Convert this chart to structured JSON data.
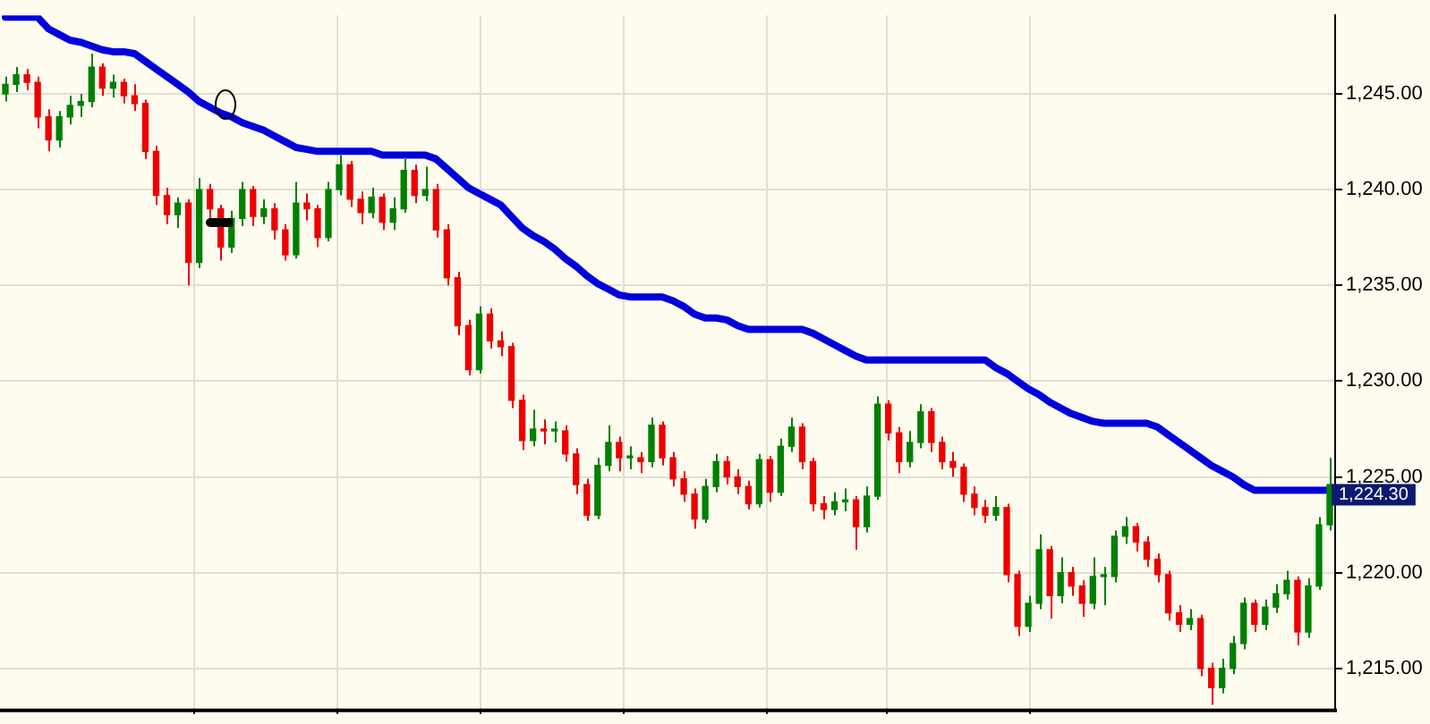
{
  "chart_data": {
    "type": "candlestick",
    "categories": [
      null,
      null,
      null,
      null,
      null,
      null,
      null,
      null,
      null,
      null,
      null,
      null,
      null,
      null,
      null,
      null,
      null,
      null,
      null,
      null,
      null,
      null,
      null,
      null,
      null,
      null,
      null,
      null,
      null,
      null,
      null,
      null,
      null,
      null,
      null,
      null,
      null,
      null,
      null,
      null,
      null,
      null,
      null,
      null,
      null,
      null,
      null,
      null,
      null,
      null,
      null,
      null,
      null,
      null,
      null,
      null,
      null,
      null,
      null,
      null,
      null,
      null,
      null,
      null,
      null,
      null,
      null,
      null,
      null,
      null,
      null,
      null,
      null,
      null,
      null,
      null,
      null,
      null,
      null,
      null,
      null,
      null,
      null,
      null,
      null,
      null,
      null,
      null,
      null,
      null,
      null,
      null,
      null,
      null,
      null,
      null,
      null,
      null,
      null,
      null,
      null,
      null,
      null,
      null,
      null,
      null,
      null,
      null,
      null,
      null,
      null,
      null,
      null,
      null,
      null,
      null,
      null,
      null,
      null,
      null,
      null,
      null,
      null,
      null
    ],
    "ohlc": [
      [
        1245.0,
        1245.9,
        1244.6,
        1245.5
      ],
      [
        1245.5,
        1246.4,
        1245.1,
        1246.0
      ],
      [
        1246.0,
        1246.3,
        1245.2,
        1245.6
      ],
      [
        1245.6,
        1245.9,
        1243.2,
        1243.8
      ],
      [
        1243.8,
        1244.2,
        1242.0,
        1242.6
      ],
      [
        1242.6,
        1244.1,
        1242.2,
        1243.8
      ],
      [
        1243.8,
        1244.9,
        1243.4,
        1244.4
      ],
      [
        1244.4,
        1245.0,
        1243.8,
        1244.6
      ],
      [
        1244.6,
        1247.1,
        1244.3,
        1246.4
      ],
      [
        1246.4,
        1246.6,
        1244.9,
        1245.3
      ],
      [
        1245.3,
        1246.0,
        1244.8,
        1245.6
      ],
      [
        1245.6,
        1245.8,
        1244.5,
        1244.9
      ],
      [
        1244.9,
        1245.5,
        1244.1,
        1244.5
      ],
      [
        1244.5,
        1244.7,
        1241.6,
        1242.0
      ],
      [
        1242.0,
        1242.3,
        1239.2,
        1239.7
      ],
      [
        1239.7,
        1240.1,
        1238.2,
        1238.7
      ],
      [
        1238.7,
        1239.6,
        1238.0,
        1239.3
      ],
      [
        1239.3,
        1239.5,
        1235.0,
        1236.2
      ],
      [
        1236.2,
        1240.6,
        1235.9,
        1240.0
      ],
      [
        1240.0,
        1240.3,
        1238.5,
        1239.0
      ],
      [
        1239.0,
        1239.2,
        1236.3,
        1237.0
      ],
      [
        1237.0,
        1238.9,
        1236.7,
        1238.5
      ],
      [
        1238.5,
        1240.4,
        1238.1,
        1240.0
      ],
      [
        1240.0,
        1240.2,
        1238.1,
        1238.6
      ],
      [
        1238.6,
        1239.5,
        1238.2,
        1239.0
      ],
      [
        1239.0,
        1239.3,
        1237.4,
        1237.9
      ],
      [
        1237.9,
        1238.2,
        1236.3,
        1236.6
      ],
      [
        1236.6,
        1240.4,
        1236.4,
        1239.3
      ],
      [
        1239.3,
        1239.8,
        1238.4,
        1239.0
      ],
      [
        1239.0,
        1239.2,
        1237.0,
        1237.5
      ],
      [
        1237.5,
        1240.4,
        1237.3,
        1240.0
      ],
      [
        1240.0,
        1241.8,
        1239.7,
        1241.3
      ],
      [
        1241.3,
        1241.5,
        1239.1,
        1239.5
      ],
      [
        1239.5,
        1239.9,
        1238.2,
        1238.8
      ],
      [
        1238.8,
        1240.1,
        1238.5,
        1239.6
      ],
      [
        1239.6,
        1239.8,
        1237.9,
        1238.3
      ],
      [
        1238.3,
        1239.6,
        1237.9,
        1239.0
      ],
      [
        1239.0,
        1241.6,
        1238.8,
        1241.0
      ],
      [
        1241.0,
        1241.3,
        1239.3,
        1239.7
      ],
      [
        1239.7,
        1241.2,
        1239.4,
        1240.0
      ],
      [
        1240.0,
        1240.3,
        1237.5,
        1237.9
      ],
      [
        1237.9,
        1238.2,
        1235.0,
        1235.4
      ],
      [
        1235.4,
        1235.7,
        1232.4,
        1232.9
      ],
      [
        1232.9,
        1233.2,
        1230.3,
        1230.6
      ],
      [
        1230.6,
        1233.9,
        1230.4,
        1233.5
      ],
      [
        1233.5,
        1233.8,
        1231.7,
        1232.1
      ],
      [
        1232.1,
        1232.6,
        1231.3,
        1231.8
      ],
      [
        1231.8,
        1232.0,
        1228.6,
        1229.0
      ],
      [
        1229.0,
        1229.3,
        1226.4,
        1226.9
      ],
      [
        1226.9,
        1228.5,
        1226.6,
        1227.5
      ],
      [
        1227.5,
        1228.0,
        1226.7,
        1227.4
      ],
      [
        1227.4,
        1227.9,
        1226.8,
        1227.4
      ],
      [
        1227.4,
        1227.7,
        1225.8,
        1226.2
      ],
      [
        1226.2,
        1226.5,
        1224.1,
        1224.6
      ],
      [
        1224.6,
        1224.9,
        1222.7,
        1223.0
      ],
      [
        1223.0,
        1226.0,
        1222.8,
        1225.6
      ],
      [
        1225.6,
        1227.7,
        1225.3,
        1226.8
      ],
      [
        1226.8,
        1227.1,
        1225.3,
        1226.0
      ],
      [
        1226.0,
        1226.6,
        1225.4,
        1226.0
      ],
      [
        1226.0,
        1226.3,
        1225.2,
        1225.8
      ],
      [
        1225.8,
        1228.1,
        1225.5,
        1227.7
      ],
      [
        1227.7,
        1227.9,
        1225.6,
        1226.0
      ],
      [
        1226.0,
        1226.3,
        1224.5,
        1224.9
      ],
      [
        1224.9,
        1225.3,
        1223.7,
        1224.1
      ],
      [
        1224.1,
        1224.4,
        1222.3,
        1222.8
      ],
      [
        1222.8,
        1224.9,
        1222.6,
        1224.5
      ],
      [
        1224.5,
        1226.2,
        1224.2,
        1225.8
      ],
      [
        1225.8,
        1226.1,
        1224.6,
        1225.0
      ],
      [
        1225.0,
        1225.4,
        1224.1,
        1224.5
      ],
      [
        1224.5,
        1224.8,
        1223.3,
        1223.6
      ],
      [
        1223.6,
        1226.2,
        1223.4,
        1225.9
      ],
      [
        1225.9,
        1226.1,
        1223.7,
        1224.2
      ],
      [
        1224.2,
        1227.0,
        1224.0,
        1226.6
      ],
      [
        1226.6,
        1228.1,
        1226.3,
        1227.6
      ],
      [
        1227.6,
        1227.8,
        1225.4,
        1225.8
      ],
      [
        1225.8,
        1226.0,
        1223.2,
        1223.6
      ],
      [
        1223.6,
        1224.0,
        1222.8,
        1223.3
      ],
      [
        1223.3,
        1224.2,
        1223.0,
        1223.7
      ],
      [
        1223.7,
        1224.4,
        1223.2,
        1223.8
      ],
      [
        1223.8,
        1224.0,
        1221.2,
        1222.4
      ],
      [
        1222.4,
        1224.5,
        1222.1,
        1224.0
      ],
      [
        1224.0,
        1229.2,
        1223.8,
        1228.8
      ],
      [
        1228.8,
        1229.0,
        1226.9,
        1227.3
      ],
      [
        1227.3,
        1227.6,
        1225.2,
        1225.8
      ],
      [
        1225.8,
        1227.4,
        1225.5,
        1226.8
      ],
      [
        1226.8,
        1228.8,
        1226.5,
        1228.4
      ],
      [
        1228.4,
        1228.6,
        1226.3,
        1226.8
      ],
      [
        1226.8,
        1227.1,
        1225.4,
        1225.8
      ],
      [
        1225.8,
        1226.3,
        1225.0,
        1225.5
      ],
      [
        1225.5,
        1225.7,
        1223.7,
        1224.1
      ],
      [
        1224.1,
        1224.5,
        1223.0,
        1223.4
      ],
      [
        1223.4,
        1223.8,
        1222.6,
        1223.0
      ],
      [
        1223.0,
        1224.0,
        1222.7,
        1223.4
      ],
      [
        1223.4,
        1223.6,
        1219.5,
        1219.9
      ],
      [
        1219.9,
        1220.1,
        1216.7,
        1217.2
      ],
      [
        1217.2,
        1218.8,
        1216.9,
        1218.4
      ],
      [
        1218.4,
        1222.0,
        1218.1,
        1221.2
      ],
      [
        1221.2,
        1221.4,
        1217.6,
        1218.8
      ],
      [
        1218.8,
        1220.8,
        1218.4,
        1220.0
      ],
      [
        1220.0,
        1220.3,
        1218.8,
        1219.3
      ],
      [
        1219.3,
        1219.6,
        1217.7,
        1218.4
      ],
      [
        1218.4,
        1220.8,
        1218.1,
        1219.8
      ],
      [
        1219.8,
        1220.3,
        1218.3,
        1219.8
      ],
      [
        1219.8,
        1222.2,
        1219.5,
        1221.9
      ],
      [
        1221.9,
        1222.9,
        1221.5,
        1222.4
      ],
      [
        1222.4,
        1222.6,
        1221.1,
        1221.6
      ],
      [
        1221.6,
        1221.9,
        1220.3,
        1220.7
      ],
      [
        1220.7,
        1221.0,
        1219.5,
        1219.9
      ],
      [
        1219.9,
        1220.1,
        1217.5,
        1217.9
      ],
      [
        1217.9,
        1218.3,
        1216.9,
        1217.3
      ],
      [
        1217.3,
        1218.1,
        1217.0,
        1217.6
      ],
      [
        1217.6,
        1217.8,
        1214.6,
        1215.0
      ],
      [
        1215.0,
        1215.3,
        1213.1,
        1214.0
      ],
      [
        1214.0,
        1215.5,
        1213.7,
        1215.0
      ],
      [
        1215.0,
        1216.7,
        1214.7,
        1216.3
      ],
      [
        1216.3,
        1218.7,
        1216.0,
        1218.4
      ],
      [
        1218.4,
        1218.6,
        1216.9,
        1217.3
      ],
      [
        1217.3,
        1218.6,
        1217.0,
        1218.2
      ],
      [
        1218.2,
        1219.4,
        1217.9,
        1218.9
      ],
      [
        1218.9,
        1220.1,
        1218.6,
        1219.6
      ],
      [
        1219.6,
        1219.8,
        1216.2,
        1216.9
      ],
      [
        1216.9,
        1219.7,
        1216.6,
        1219.3
      ],
      [
        1219.3,
        1222.9,
        1219.1,
        1222.5
      ],
      [
        1222.5,
        1226.0,
        1222.2,
        1224.6
      ]
    ],
    "colors": [
      "#008000",
      "#008000",
      "#ee0000",
      "#ee0000",
      "#ee0000",
      "#008000",
      "#008000",
      "#008000",
      "#008000",
      "#ee0000",
      "#008000",
      "#ee0000",
      "#ee0000",
      "#ee0000",
      "#ee0000",
      "#ee0000",
      "#008000",
      "#ee0000",
      "#008000",
      "#ee0000",
      "#ee0000",
      "#008000",
      "#008000",
      "#ee0000",
      "#008000",
      "#ee0000",
      "#ee0000",
      "#008000",
      "#ee0000",
      "#ee0000",
      "#008000",
      "#008000",
      "#ee0000",
      "#ee0000",
      "#008000",
      "#ee0000",
      "#008000",
      "#008000",
      "#ee0000",
      "#008000",
      "#ee0000",
      "#ee0000",
      "#ee0000",
      "#ee0000",
      "#008000",
      "#ee0000",
      "#ee0000",
      "#ee0000",
      "#ee0000",
      "#008000",
      "#ee0000",
      "#008000",
      "#ee0000",
      "#ee0000",
      "#ee0000",
      "#008000",
      "#008000",
      "#ee0000",
      "#008000",
      "#ee0000",
      "#008000",
      "#ee0000",
      "#ee0000",
      "#ee0000",
      "#ee0000",
      "#008000",
      "#008000",
      "#ee0000",
      "#ee0000",
      "#ee0000",
      "#008000",
      "#ee0000",
      "#008000",
      "#008000",
      "#ee0000",
      "#ee0000",
      "#ee0000",
      "#008000",
      "#008000",
      "#ee0000",
      "#008000",
      "#008000",
      "#ee0000",
      "#ee0000",
      "#008000",
      "#008000",
      "#ee0000",
      "#ee0000",
      "#ee0000",
      "#ee0000",
      "#ee0000",
      "#ee0000",
      "#008000",
      "#ee0000",
      "#ee0000",
      "#008000",
      "#008000",
      "#ee0000",
      "#008000",
      "#ee0000",
      "#ee0000",
      "#008000",
      "#008000",
      "#008000",
      "#008000",
      "#ee0000",
      "#ee0000",
      "#ee0000",
      "#ee0000",
      "#ee0000",
      "#008000",
      "#ee0000",
      "#ee0000",
      "#008000",
      "#008000",
      "#008000",
      "#ee0000",
      "#008000",
      "#008000",
      "#008000",
      "#ee0000",
      "#008000",
      "#008000",
      "#008000"
    ],
    "series": [
      {
        "type": "line",
        "color": "#0000dd",
        "values": [
          1249.0,
          1249.0,
          1249.0,
          1249.0,
          1248.4,
          1248.1,
          1247.8,
          1247.7,
          1247.5,
          1247.3,
          1247.2,
          1247.2,
          1247.1,
          1246.7,
          1246.3,
          1245.9,
          1245.5,
          1245.1,
          1244.6,
          1244.3,
          1244.0,
          1243.8,
          1243.5,
          1243.3,
          1243.1,
          1242.8,
          1242.5,
          1242.2,
          1242.1,
          1242.0,
          1242.0,
          1242.0,
          1242.0,
          1242.0,
          1242.0,
          1241.8,
          1241.8,
          1241.8,
          1241.8,
          1241.8,
          1241.6,
          1241.1,
          1240.6,
          1240.1,
          1239.8,
          1239.5,
          1239.2,
          1238.6,
          1238.0,
          1237.6,
          1237.3,
          1236.9,
          1236.4,
          1236.0,
          1235.5,
          1235.1,
          1234.8,
          1234.5,
          1234.4,
          1234.4,
          1234.4,
          1234.4,
          1234.2,
          1233.9,
          1233.5,
          1233.3,
          1233.3,
          1233.2,
          1232.9,
          1232.7,
          1232.7,
          1232.7,
          1232.7,
          1232.7,
          1232.7,
          1232.5,
          1232.2,
          1231.9,
          1231.6,
          1231.3,
          1231.1,
          1231.1,
          1231.1,
          1231.1,
          1231.1,
          1231.1,
          1231.1,
          1231.1,
          1231.1,
          1231.1,
          1231.1,
          1231.1,
          1230.7,
          1230.4,
          1230.0,
          1229.6,
          1229.3,
          1228.9,
          1228.6,
          1228.3,
          1228.1,
          1227.9,
          1227.8,
          1227.8,
          1227.8,
          1227.8,
          1227.8,
          1227.6,
          1227.2,
          1226.8,
          1226.4,
          1226.0,
          1225.6,
          1225.3,
          1225.0,
          1224.6,
          1224.3,
          1224.3,
          1224.3,
          1224.3,
          1224.3,
          1224.3,
          1224.3,
          1224.3
        ]
      }
    ],
    "ylim": [
      1212.9,
      1249.1
    ],
    "yticks": [
      {
        "value": 1215,
        "label": "1,215.00"
      },
      {
        "value": 1220,
        "label": "1,220.00"
      },
      {
        "value": 1225,
        "label": "1,225.00"
      },
      {
        "value": 1230,
        "label": "1,230.00"
      },
      {
        "value": 1235,
        "label": "1,235.00"
      },
      {
        "value": 1240,
        "label": "1,240.00"
      },
      {
        "value": 1245,
        "label": "1,245.00"
      }
    ],
    "annotations": [
      "1,224.30"
    ],
    "grid": true,
    "tick_labels": "y"
  }
}
